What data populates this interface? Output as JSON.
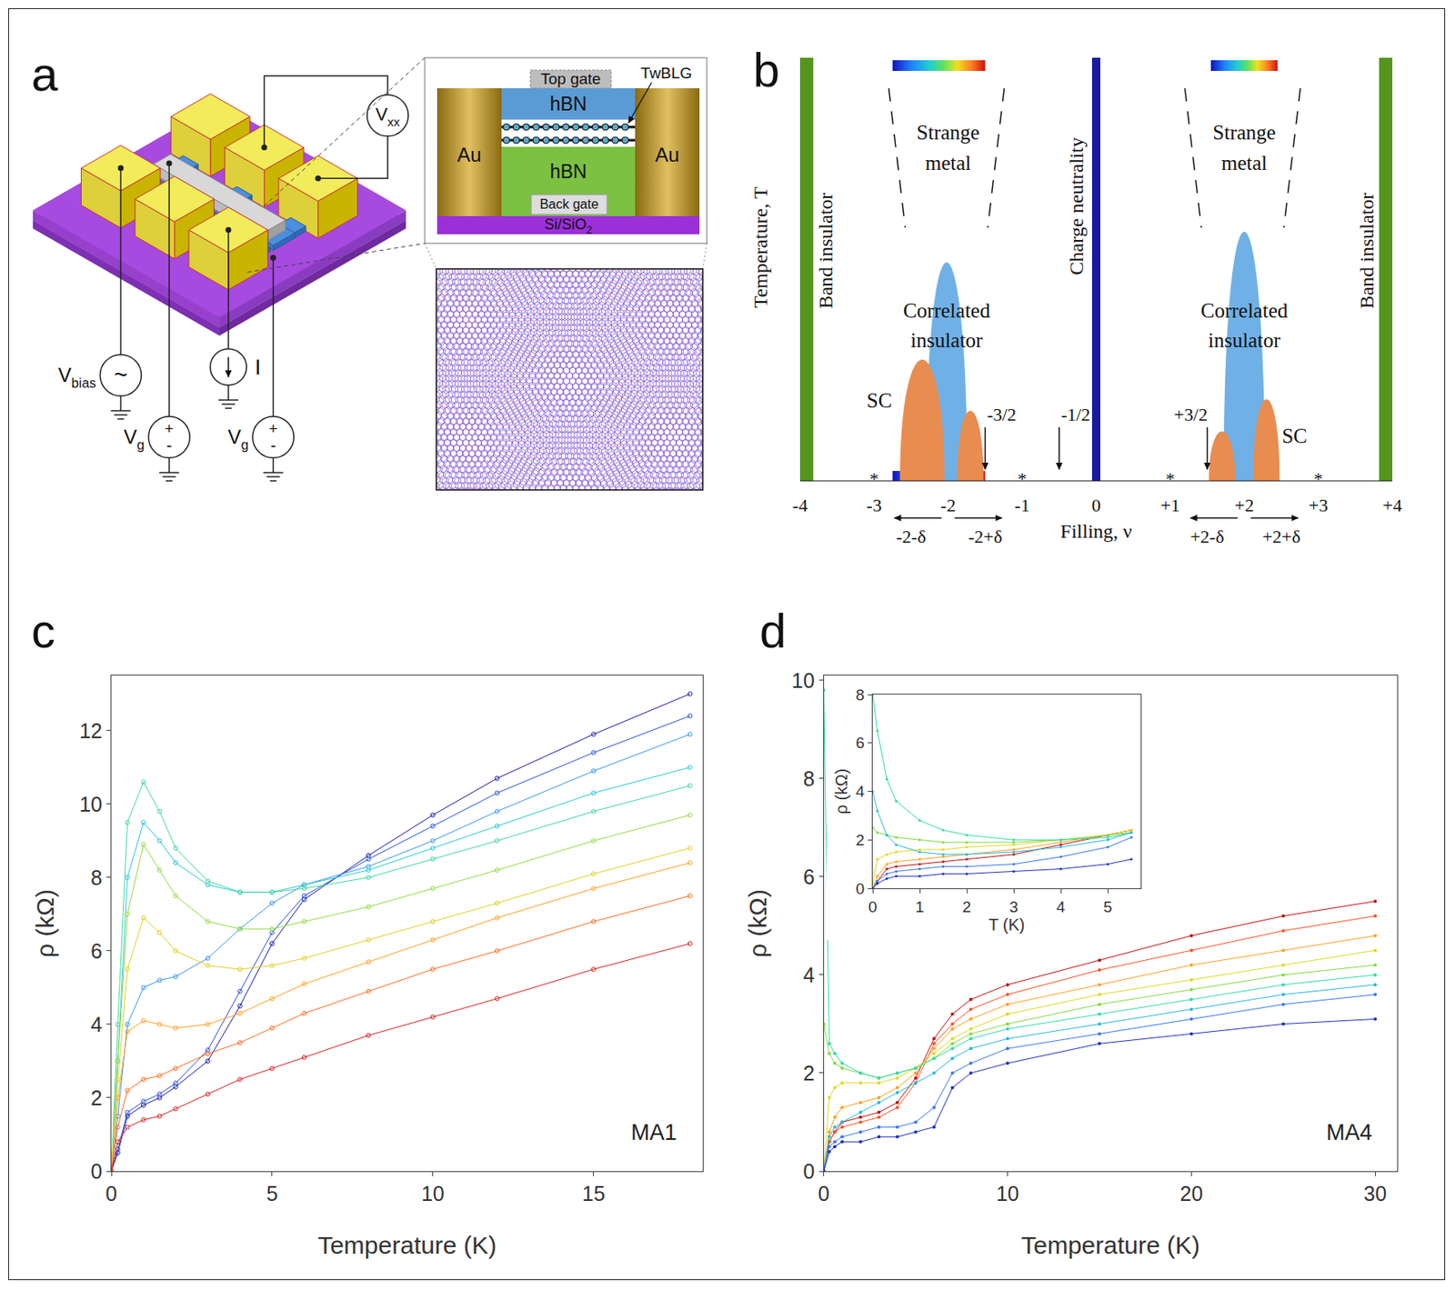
{
  "figure": {
    "panel_a": {
      "panel_label": "a",
      "meter": {
        "text": "V",
        "sub": "xx"
      },
      "bias_source": {
        "text": "V",
        "sub": "bias",
        "symbol": "~"
      },
      "gate_sources": [
        {
          "text": "V",
          "sub": "g",
          "symbols": [
            "+",
            "-"
          ]
        },
        {
          "text": "V",
          "sub": "g",
          "symbols": [
            "+",
            "-"
          ]
        }
      ],
      "current_source": "I",
      "cross_section": {
        "top_gate": "Top gate",
        "sample": "TwBLG",
        "top_dielectric": "hBN",
        "bottom_dielectric": "hBN",
        "back_gate": "Back gate",
        "electrodes": [
          "Au",
          "Au"
        ],
        "substrate": {
          "text": "Si/SiO",
          "sub": "2"
        }
      }
    },
    "panel_b": {
      "panel_label": "b",
      "x_label": "Filling, ν",
      "y_label": "Temperature, T",
      "xlim": [
        -4,
        4
      ],
      "xticks": [
        -4,
        -3,
        -2,
        -1,
        0,
        {
          "value": 1,
          "label": "+1"
        },
        {
          "value": 2,
          "label": "+2"
        },
        {
          "value": 3,
          "label": "+3"
        },
        {
          "value": 4,
          "label": "+4"
        }
      ],
      "band_insulator": {
        "text": "Band insulator",
        "fillings": [
          -4,
          4
        ]
      },
      "charge_neutrality": {
        "text": "Charge neutrality",
        "filling": 0
      },
      "strange_metal": {
        "text": "Strange metal",
        "fillings": [
          -2,
          2
        ]
      },
      "correlated_insulator": {
        "text": "Correlated insulator",
        "fillings": [
          -2.02,
          2.0
        ]
      },
      "superconductor": {
        "text": "SC",
        "fillings": [
          -2.35,
          -1.7,
          1.7,
          2.3
        ]
      },
      "arrows": [
        {
          "value": -1.5,
          "label": "-3/2"
        },
        {
          "value": -0.5,
          "label": "-1/2"
        },
        {
          "value": 1.5,
          "label": "+3/2"
        }
      ],
      "stars": {
        "text": "*",
        "fillings": [
          -3,
          -1,
          1,
          3
        ]
      },
      "doping": [
        {
          "center": -2,
          "labels": [
            "-2-δ",
            "-2+δ"
          ]
        },
        {
          "center": 2,
          "labels": [
            "+2-δ",
            "+2+δ"
          ]
        }
      ],
      "color_ranges": [
        [
          -2.75,
          -1.5
        ],
        [
          1.55,
          2.45
        ]
      ]
    }
  },
  "chart_data": [
    {
      "panel_label": "c",
      "type": "line",
      "x_label": "Temperature (K)",
      "y_label": "ρ (kΩ)",
      "annotations": [
        "MA1"
      ],
      "marker": "circle-open",
      "x": [
        0,
        0.2,
        0.5,
        1,
        1.5,
        2,
        3,
        4,
        5,
        6,
        8,
        10,
        12,
        15,
        18
      ],
      "xlim": [
        0,
        18.4
      ],
      "xticks": [
        0,
        5,
        10,
        15
      ],
      "ylim": [
        0,
        13.5
      ],
      "yticks": [
        0,
        2,
        4,
        6,
        8,
        10,
        12
      ],
      "series": [
        {
          "color": "#1a1aa8",
          "values": [
            0,
            0.5,
            1.5,
            1.8,
            2.0,
            2.3,
            3.0,
            4.5,
            6.2,
            7.4,
            8.6,
            9.7,
            10.7,
            11.9,
            13.0
          ]
        },
        {
          "color": "#2a50e0",
          "values": [
            0,
            0.6,
            1.6,
            1.9,
            2.1,
            2.4,
            3.3,
            4.9,
            6.5,
            7.5,
            8.5,
            9.4,
            10.3,
            11.4,
            12.4
          ]
        },
        {
          "color": "#3a96f0",
          "values": [
            0,
            1.5,
            4.0,
            5.0,
            5.2,
            5.3,
            5.8,
            6.6,
            7.3,
            7.8,
            8.3,
            9.0,
            9.8,
            10.9,
            11.9
          ]
        },
        {
          "color": "#28c8d8",
          "values": [
            0,
            3.0,
            8.0,
            9.5,
            9.0,
            8.4,
            7.8,
            7.6,
            7.6,
            7.8,
            8.2,
            8.8,
            9.4,
            10.3,
            11.0
          ]
        },
        {
          "color": "#40d8a0",
          "values": [
            0,
            4.0,
            9.5,
            10.6,
            9.8,
            8.8,
            7.9,
            7.6,
            7.6,
            7.7,
            8.0,
            8.5,
            9.0,
            9.8,
            10.5
          ]
        },
        {
          "color": "#90dc40",
          "values": [
            0,
            3.0,
            7.0,
            8.9,
            8.2,
            7.5,
            6.8,
            6.6,
            6.6,
            6.8,
            7.2,
            7.7,
            8.2,
            9.0,
            9.7
          ]
        },
        {
          "color": "#e0d020",
          "values": [
            0,
            2.5,
            5.5,
            6.9,
            6.5,
            6.0,
            5.6,
            5.5,
            5.6,
            5.8,
            6.3,
            6.8,
            7.3,
            8.1,
            8.8
          ]
        },
        {
          "color": "#ffa020",
          "values": [
            0,
            2.0,
            3.8,
            4.1,
            4.0,
            3.9,
            4.0,
            4.3,
            4.7,
            5.1,
            5.7,
            6.3,
            6.9,
            7.7,
            8.4
          ]
        },
        {
          "color": "#ff6a20",
          "values": [
            0,
            1.2,
            2.2,
            2.5,
            2.6,
            2.8,
            3.2,
            3.5,
            3.9,
            4.3,
            4.9,
            5.5,
            6.0,
            6.8,
            7.5
          ]
        },
        {
          "color": "#d82020",
          "values": [
            0,
            0.8,
            1.2,
            1.4,
            1.5,
            1.7,
            2.1,
            2.5,
            2.8,
            3.1,
            3.7,
            4.2,
            4.7,
            5.5,
            6.2
          ]
        }
      ]
    },
    {
      "panel_label": "d",
      "type": "line",
      "x_label": "Temperature (K)",
      "y_label": "ρ (kΩ)",
      "annotations": [
        "MA4"
      ],
      "marker": "circle",
      "x": [
        0,
        0.3,
        0.6,
        1,
        2,
        3,
        4,
        5,
        6,
        7,
        8,
        10,
        15,
        20,
        25,
        30
      ],
      "xlim": [
        0,
        31.2
      ],
      "xticks": [
        0,
        10,
        20,
        30
      ],
      "ylim": [
        0,
        10.1
      ],
      "yticks": [
        0,
        2,
        4,
        6,
        8,
        10
      ],
      "series": [
        {
          "color": "#c01010",
          "values": [
            0,
            0.6,
            0.8,
            1.0,
            1.1,
            1.2,
            1.4,
            1.9,
            2.7,
            3.2,
            3.5,
            3.8,
            4.3,
            4.8,
            5.2,
            5.5
          ]
        },
        {
          "color": "#ff5020",
          "values": [
            0,
            0.6,
            0.8,
            0.9,
            1.0,
            1.1,
            1.3,
            1.8,
            2.6,
            3.0,
            3.3,
            3.6,
            4.1,
            4.5,
            4.9,
            5.2
          ]
        },
        {
          "color": "#ffa020",
          "values": [
            0,
            0.8,
            1.1,
            1.3,
            1.4,
            1.5,
            1.7,
            2.0,
            2.5,
            2.9,
            3.1,
            3.4,
            3.8,
            4.2,
            4.5,
            4.8
          ]
        },
        {
          "color": "#e0d820",
          "values": [
            0,
            1.5,
            1.7,
            1.8,
            1.8,
            1.8,
            1.9,
            2.1,
            2.4,
            2.7,
            2.9,
            3.2,
            3.6,
            3.9,
            4.2,
            4.5
          ]
        },
        {
          "color": "#80dc40",
          "values": [
            3.0,
            2.4,
            2.2,
            2.1,
            2.0,
            1.9,
            2.0,
            2.1,
            2.3,
            2.6,
            2.8,
            3.0,
            3.4,
            3.7,
            4.0,
            4.2
          ]
        },
        {
          "color": "#30dca8",
          "values": [
            9.8,
            2.6,
            2.4,
            2.2,
            2.0,
            1.9,
            2.0,
            2.1,
            2.3,
            2.5,
            2.7,
            2.9,
            3.2,
            3.5,
            3.8,
            4.0
          ]
        },
        {
          "color": "#28b8e0",
          "values": [
            0,
            0.7,
            0.9,
            1.0,
            1.2,
            1.4,
            1.6,
            1.8,
            2.0,
            2.3,
            2.5,
            2.7,
            3.0,
            3.3,
            3.6,
            3.8
          ]
        },
        {
          "color": "#3878f0",
          "values": [
            0,
            0.5,
            0.6,
            0.7,
            0.8,
            0.9,
            0.9,
            1.0,
            1.3,
            2.0,
            2.2,
            2.5,
            2.8,
            3.1,
            3.4,
            3.6
          ]
        },
        {
          "color": "#2030c0",
          "values": [
            0,
            0.4,
            0.5,
            0.6,
            0.6,
            0.7,
            0.7,
            0.8,
            0.9,
            1.7,
            2.0,
            2.2,
            2.6,
            2.8,
            3.0,
            3.1
          ]
        }
      ],
      "inset": {
        "type": "line",
        "x_label": "T (K)",
        "y_label": "ρ (kΩ)",
        "marker": "circle",
        "x": [
          0,
          0.1,
          0.3,
          0.5,
          1,
          1.5,
          2,
          3,
          4,
          5,
          5.5
        ],
        "xlim": [
          0,
          5.7
        ],
        "xticks": [
          0,
          1,
          2,
          3,
          4,
          5
        ],
        "ylim": [
          0,
          8
        ],
        "yticks": [
          0,
          2,
          4,
          6,
          8
        ],
        "series": [
          {
            "color": "#c01010",
            "values": [
              0,
              0.3,
              0.8,
              0.9,
              1.0,
              1.1,
              1.2,
              1.4,
              1.8,
              2.2,
              2.4
            ]
          },
          {
            "color": "#ffa020",
            "values": [
              0,
              0.5,
              1.0,
              1.1,
              1.2,
              1.3,
              1.4,
              1.6,
              1.9,
              2.2,
              2.4
            ]
          },
          {
            "color": "#e0d820",
            "values": [
              0.2,
              1.2,
              1.4,
              1.5,
              1.6,
              1.6,
              1.7,
              1.8,
              2.0,
              2.2,
              2.4
            ]
          },
          {
            "color": "#80dc40",
            "values": [
              2.5,
              2.3,
              2.2,
              2.1,
              2.0,
              1.9,
              1.9,
              1.9,
              2.0,
              2.2,
              2.3
            ]
          },
          {
            "color": "#30dca8",
            "values": [
              8.0,
              6.5,
              4.5,
              3.6,
              2.8,
              2.4,
              2.2,
              2.0,
              2.0,
              2.1,
              2.3
            ]
          },
          {
            "color": "#28b8e0",
            "values": [
              4.0,
              3.2,
              2.2,
              1.8,
              1.5,
              1.4,
              1.4,
              1.5,
              1.7,
              2.0,
              2.3
            ]
          },
          {
            "color": "#3878f0",
            "values": [
              0,
              0.3,
              0.6,
              0.7,
              0.8,
              0.9,
              0.9,
              1.0,
              1.3,
              1.7,
              2.1
            ]
          },
          {
            "color": "#2030c0",
            "values": [
              0,
              0.2,
              0.4,
              0.5,
              0.5,
              0.6,
              0.6,
              0.7,
              0.8,
              1.0,
              1.2
            ]
          }
        ]
      }
    }
  ]
}
